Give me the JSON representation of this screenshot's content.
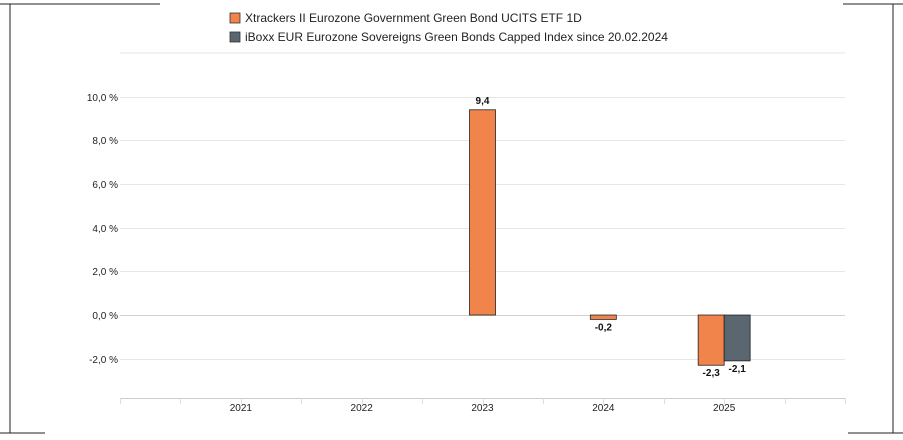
{
  "chart_data": {
    "type": "bar",
    "categories": [
      "2021",
      "2022",
      "2023",
      "2024",
      "2025"
    ],
    "series": [
      {
        "name": "Xtrackers II Eurozone Government Green Bond UCITS ETF 1D",
        "color": "#f0844a",
        "values": [
          null,
          null,
          9.4,
          -0.2,
          -2.3
        ],
        "labels": [
          "",
          "",
          "9,4",
          "-0,2",
          "-2,3"
        ]
      },
      {
        "name": "iBoxx EUR Eurozone Sovereigns Green Bonds Capped Index since 20.02.2024",
        "color": "#5a6770",
        "values": [
          null,
          null,
          null,
          null,
          -2.1
        ],
        "labels": [
          "",
          "",
          "",
          "",
          "-2,1"
        ]
      }
    ],
    "y_ticks": [
      {
        "value": 10,
        "label": "10,0 %"
      },
      {
        "value": 8,
        "label": "8,0 %"
      },
      {
        "value": 6,
        "label": "6,0 %"
      },
      {
        "value": 4,
        "label": "4,0 %"
      },
      {
        "value": 2,
        "label": "2,0 %"
      },
      {
        "value": 0,
        "label": "0,0 %"
      },
      {
        "value": -2,
        "label": "-2,0 %"
      }
    ],
    "ylim": [
      -3.8,
      12
    ],
    "grid": true,
    "legend": "top-left"
  }
}
